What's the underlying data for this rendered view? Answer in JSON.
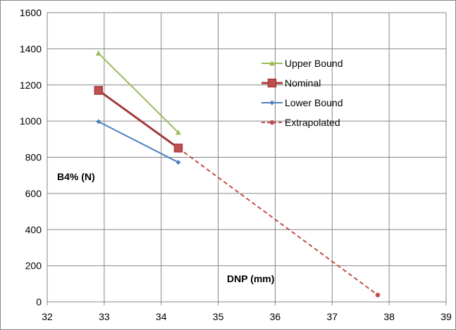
{
  "chart_data": {
    "type": "line",
    "xlabel": "DNP (mm)",
    "ylabel": "B4% (N)",
    "xlim": [
      32,
      39
    ],
    "ylim": [
      0,
      1600
    ],
    "xticks": [
      32,
      33,
      34,
      35,
      36,
      37,
      38,
      39
    ],
    "yticks": [
      0,
      200,
      400,
      600,
      800,
      1000,
      1200,
      1400,
      1600
    ],
    "grid": true,
    "legend_position": "top-right",
    "series": [
      {
        "name": "Upper Bound",
        "color": "#9BBB59",
        "marker": "triangle",
        "dashed": false,
        "x": [
          32.9,
          34.3
        ],
        "y": [
          1375,
          937
        ]
      },
      {
        "name": "Nominal",
        "color": "#A33B3B",
        "marker": "square",
        "dashed": false,
        "x": [
          32.9,
          34.3
        ],
        "y": [
          1170,
          851
        ]
      },
      {
        "name": "Lower Bound",
        "color": "#4F81BD",
        "marker": "diamond",
        "dashed": false,
        "x": [
          32.9,
          34.3
        ],
        "y": [
          997,
          772
        ]
      },
      {
        "name": "Extrapolated",
        "color": "#C0504D",
        "marker": "circle",
        "dashed": true,
        "x": [
          34.3,
          37.8
        ],
        "y": [
          851,
          38
        ]
      }
    ]
  }
}
